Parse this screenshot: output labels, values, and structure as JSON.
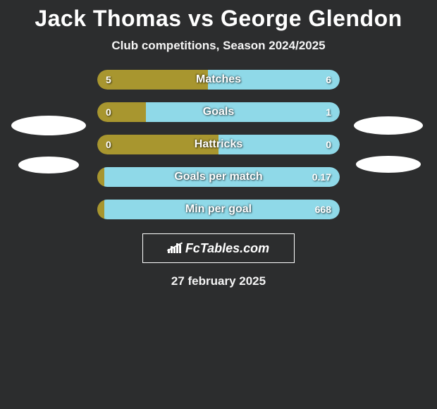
{
  "title": "Jack Thomas vs George Glendon",
  "subtitle": "Club competitions, Season 2024/2025",
  "date": "27 february 2025",
  "logo_text": "FcTables.com",
  "colors": {
    "background": "#2c2d2e",
    "player1_bar": "#a8962f",
    "player2_bar": "#8fd9e8",
    "ellipse": "#ffffff",
    "text": "#ffffff"
  },
  "ellipses": {
    "left": [
      {
        "width": 106,
        "height": 28
      },
      {
        "width": 86,
        "height": 24
      }
    ],
    "right": [
      {
        "width": 98,
        "height": 26
      },
      {
        "width": 92,
        "height": 24
      }
    ]
  },
  "bars": [
    {
      "label": "Matches",
      "left_value": "5",
      "right_value": "6",
      "left_width_pct": 45.5,
      "right_width_pct": 54.5
    },
    {
      "label": "Goals",
      "left_value": "0",
      "right_value": "1",
      "left_width_pct": 20,
      "right_width_pct": 80
    },
    {
      "label": "Hattricks",
      "left_value": "0",
      "right_value": "0",
      "left_width_pct": 50,
      "right_width_pct": 50
    },
    {
      "label": "Goals per match",
      "left_value": "",
      "right_value": "0.17",
      "left_width_pct": 3,
      "right_width_pct": 97
    },
    {
      "label": "Min per goal",
      "left_value": "",
      "right_value": "668",
      "left_width_pct": 3,
      "right_width_pct": 97
    }
  ]
}
